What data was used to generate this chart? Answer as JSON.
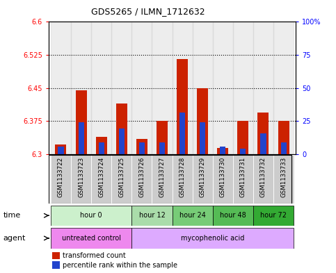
{
  "title": "GDS5265 / ILMN_1712632",
  "samples": [
    "GSM1133722",
    "GSM1133723",
    "GSM1133724",
    "GSM1133725",
    "GSM1133726",
    "GSM1133727",
    "GSM1133728",
    "GSM1133729",
    "GSM1133730",
    "GSM1133731",
    "GSM1133732",
    "GSM1133733"
  ],
  "red_values": [
    6.322,
    6.445,
    6.34,
    6.415,
    6.335,
    6.375,
    6.515,
    6.45,
    6.315,
    6.375,
    6.395,
    6.375
  ],
  "blue_values": [
    6.317,
    6.372,
    6.327,
    6.358,
    6.327,
    6.327,
    6.395,
    6.372,
    6.318,
    6.312,
    6.347,
    6.327
  ],
  "baseline": 6.3,
  "ylim_left": [
    6.3,
    6.6
  ],
  "ylim_right": [
    0,
    100
  ],
  "yticks_left": [
    6.3,
    6.375,
    6.45,
    6.525,
    6.6
  ],
  "yticks_right": [
    0,
    25,
    50,
    75,
    100
  ],
  "ytick_labels_left": [
    "6.3",
    "6.375",
    "6.45",
    "6.525",
    "6.6"
  ],
  "ytick_labels_right": [
    "0",
    "25",
    "50",
    "75",
    "100%"
  ],
  "grid_lines": [
    6.375,
    6.45,
    6.525
  ],
  "time_groups": [
    {
      "label": "hour 0",
      "start": 0,
      "end": 3,
      "color": "#ccf0cc"
    },
    {
      "label": "hour 12",
      "start": 4,
      "end": 5,
      "color": "#aadcaa"
    },
    {
      "label": "hour 24",
      "start": 6,
      "end": 7,
      "color": "#77cc77"
    },
    {
      "label": "hour 48",
      "start": 8,
      "end": 9,
      "color": "#55bb55"
    },
    {
      "label": "hour 72",
      "start": 10,
      "end": 11,
      "color": "#33aa33"
    }
  ],
  "agent_groups": [
    {
      "label": "untreated control",
      "start": 0,
      "end": 3,
      "color": "#ee88ee"
    },
    {
      "label": "mycophenolic acid",
      "start": 4,
      "end": 11,
      "color": "#ddaaff"
    }
  ],
  "bar_width": 0.55,
  "blue_bar_width": 0.28,
  "red_color": "#cc2200",
  "blue_color": "#2244cc",
  "bg_color": "#ffffff",
  "sample_bg": "#cccccc",
  "legend_red": "transformed count",
  "legend_blue": "percentile rank within the sample"
}
